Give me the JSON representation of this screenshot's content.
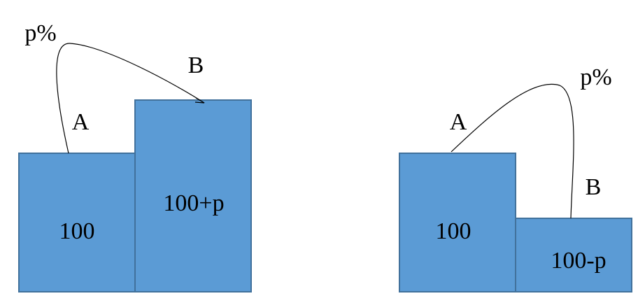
{
  "left": {
    "percent_label": "p%",
    "label_a": "A",
    "label_b": "B",
    "value_a": "100",
    "value_b": "100+p"
  },
  "right": {
    "percent_label": "p%",
    "label_a": "A",
    "label_b": "B",
    "value_a": "100",
    "value_b": "100-p"
  }
}
